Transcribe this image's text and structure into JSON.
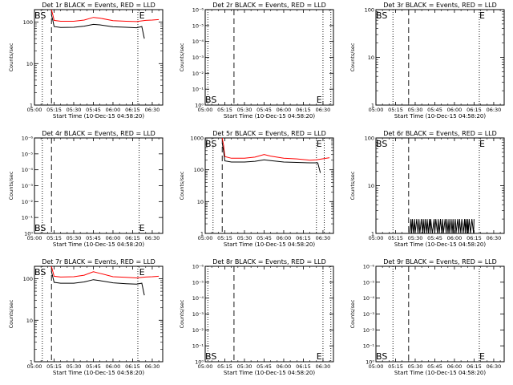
{
  "chart_data": [
    {
      "type": "line",
      "title": "Det 1r BLACK = Events, RED = LLD",
      "xlabel": "Start Time (10-Dec-15 04:58:20)",
      "ylabel": "Counts/sec",
      "x_tick_labels": [
        "05:00",
        "05:15",
        "05:30",
        "05:45",
        "06:00",
        "06:15",
        "06:30"
      ],
      "y_tick_labels": [
        "1",
        "10",
        "100"
      ],
      "ylim": [
        1,
        200
      ],
      "ylog": true,
      "ylog_labels": false,
      "markers": [
        {
          "label": "BS",
          "time": "05:00",
          "corner": "top"
        },
        {
          "label": "E",
          "time": "06:20",
          "corner": "top"
        }
      ],
      "vlines_dashed": [
        "05:00",
        "05:13"
      ],
      "vlines_dotted": [
        "05:06",
        "06:19"
      ],
      "series": [
        {
          "name": "LLD",
          "color": "#ff0000",
          "x": [
            "05:13",
            "05:14",
            "05:15",
            "05:20",
            "05:30",
            "05:38",
            "05:45",
            "05:50",
            "06:00",
            "06:10",
            "06:18",
            "06:25",
            "06:30",
            "06:35"
          ],
          "values": [
            200,
            150,
            110,
            105,
            105,
            112,
            130,
            125,
            108,
            105,
            103,
            110,
            112,
            115
          ]
        },
        {
          "name": "Events",
          "color": "#000000",
          "x": [
            "05:13",
            "05:14",
            "05:15",
            "05:20",
            "05:30",
            "05:38",
            "05:45",
            "05:50",
            "06:00",
            "06:10",
            "06:18",
            "06:22",
            "06:24"
          ],
          "values": [
            150,
            110,
            78,
            74,
            75,
            80,
            88,
            86,
            77,
            75,
            73,
            78,
            40
          ]
        }
      ]
    },
    {
      "type": "line",
      "title": "Det 2r BLACK = Events, RED = LLD",
      "xlabel": "Start Time (10-Dec-15 04:58:20)",
      "ylabel": "Counts/sec",
      "x_tick_labels": [
        "05:00",
        "05:15",
        "05:30",
        "05:45",
        "06:00",
        "06:15",
        "06:30"
      ],
      "y_tick_labels": [
        "10⁰",
        "10⁻¹",
        "10⁻²",
        "10⁻³",
        "10⁻⁴",
        "10⁻⁵",
        "10⁻⁶"
      ],
      "ylim": [
        1e-06,
        1
      ],
      "ylog": true,
      "ylog_labels": true,
      "markers": [
        {
          "label": "BS",
          "time": "05:00",
          "corner": "bottom"
        },
        {
          "label": "E",
          "time": "06:25",
          "corner": "bottom"
        }
      ],
      "vlines_dashed": [
        "05:22"
      ],
      "vlines_dotted": [
        "05:02",
        "06:30",
        "06:36"
      ],
      "series": []
    },
    {
      "type": "line",
      "title": "Det 3r BLACK = Events, RED = LLD",
      "xlabel": "Start Time (10-Dec-15 04:58:20)",
      "ylabel": "Counts/sec",
      "x_tick_labels": [
        "05:00",
        "05:15",
        "05:30",
        "05:45",
        "06:00",
        "06:15",
        "06:30"
      ],
      "y_tick_labels": [
        "1",
        "10",
        "100"
      ],
      "ylim": [
        1,
        100
      ],
      "ylog": true,
      "ylog_labels": false,
      "markers": [
        {
          "label": "BS",
          "time": "05:00",
          "corner": "top"
        },
        {
          "label": "E",
          "time": "06:19",
          "corner": "top"
        }
      ],
      "vlines_dashed": [
        "05:25"
      ],
      "vlines_dotted": [
        "05:00",
        "05:13",
        "06:19"
      ],
      "series": []
    },
    {
      "type": "line",
      "title": "Det 4r BLACK = Events, RED = LLD",
      "xlabel": "Start Time (10-Dec-15 04:58:20)",
      "ylabel": "Counts/sec",
      "x_tick_labels": [
        "05:00",
        "05:15",
        "05:30",
        "05:45",
        "06:00",
        "06:15",
        "06:30"
      ],
      "y_tick_labels": [
        "10⁰",
        "10⁻¹",
        "10⁻²",
        "10⁻³",
        "10⁻⁴",
        "10⁻⁵",
        "10⁻⁶"
      ],
      "ylim": [
        1e-06,
        1
      ],
      "ylog": true,
      "ylog_labels": true,
      "markers": [
        {
          "label": "BS",
          "time": "05:00",
          "corner": "bottom"
        },
        {
          "label": "E",
          "time": "06:20",
          "corner": "bottom"
        }
      ],
      "vlines_dashed": [
        "05:13"
      ],
      "vlines_dotted": [
        "05:00",
        "05:06",
        "06:20"
      ],
      "series": []
    },
    {
      "type": "line",
      "title": "Det 5r BLACK = Events, RED = LLD",
      "xlabel": "Start Time (10-Dec-15 04:58:20)",
      "ylabel": "Counts/sec",
      "x_tick_labels": [
        "05:00",
        "05:15",
        "05:30",
        "05:45",
        "06:00",
        "06:15",
        "06:30"
      ],
      "y_tick_labels": [
        "1",
        "10",
        "100",
        "1000"
      ],
      "ylim": [
        1,
        1000
      ],
      "ylog": true,
      "ylog_labels": false,
      "markers": [
        {
          "label": "BS",
          "time": "05:00",
          "corner": "top"
        },
        {
          "label": "E",
          "time": "06:25",
          "corner": "top"
        }
      ],
      "vlines_dashed": [
        "05:00",
        "05:13"
      ],
      "vlines_dotted": [
        "05:06",
        "06:25",
        "06:31"
      ],
      "series": [
        {
          "name": "LLD",
          "color": "#ff0000",
          "x": [
            "05:13",
            "05:14",
            "05:15",
            "05:20",
            "05:30",
            "05:38",
            "05:45",
            "05:50",
            "06:00",
            "06:10",
            "06:20",
            "06:25",
            "06:35"
          ],
          "values": [
            1000,
            600,
            260,
            230,
            230,
            250,
            300,
            270,
            230,
            220,
            200,
            205,
            240
          ]
        },
        {
          "name": "Events",
          "color": "#000000",
          "x": [
            "05:13",
            "05:14",
            "05:15",
            "05:20",
            "05:30",
            "05:38",
            "05:45",
            "05:50",
            "06:00",
            "06:10",
            "06:20",
            "06:26",
            "06:28"
          ],
          "values": [
            700,
            400,
            190,
            175,
            175,
            185,
            205,
            195,
            175,
            170,
            165,
            165,
            80
          ]
        }
      ]
    },
    {
      "type": "line",
      "title": "Det 6r BLACK = Events, RED = LLD",
      "xlabel": "Start Time (10-Dec-15 04:58:20)",
      "ylabel": "Counts/sec",
      "x_tick_labels": [
        "05:00",
        "05:15",
        "05:30",
        "05:45",
        "06:00",
        "06:15",
        "06:30"
      ],
      "y_tick_labels": [
        "1",
        "10",
        "100"
      ],
      "ylim": [
        1,
        100
      ],
      "ylog": true,
      "ylog_labels": false,
      "markers": [
        {
          "label": "BS",
          "time": "05:00",
          "corner": "top"
        },
        {
          "label": "E",
          "time": "06:19",
          "corner": "top"
        }
      ],
      "vlines_dashed": [
        "05:25"
      ],
      "vlines_dotted": [
        "05:00",
        "05:13",
        "06:19"
      ],
      "series": [
        {
          "name": "Events",
          "color": "#000000",
          "noisy": true,
          "x_start": "05:25",
          "x_end": "06:15",
          "low": 1,
          "high": 2
        }
      ]
    },
    {
      "type": "line",
      "title": "Det 7r BLACK = Events, RED = LLD",
      "xlabel": "Start Time (10-Dec-15 04:58:20)",
      "ylabel": "Counts/sec",
      "x_tick_labels": [
        "05:00",
        "05:15",
        "05:30",
        "05:45",
        "06:00",
        "06:15",
        "06:30"
      ],
      "y_tick_labels": [
        "1",
        "10",
        "100"
      ],
      "ylim": [
        1,
        200
      ],
      "ylog": true,
      "ylog_labels": false,
      "markers": [
        {
          "label": "BS",
          "time": "05:00",
          "corner": "top"
        },
        {
          "label": "E",
          "time": "06:20",
          "corner": "top"
        }
      ],
      "vlines_dashed": [
        "05:00",
        "05:13"
      ],
      "vlines_dotted": [
        "05:06",
        "06:19"
      ],
      "series": [
        {
          "name": "LLD",
          "color": "#ff0000",
          "x": [
            "05:13",
            "05:14",
            "05:15",
            "05:20",
            "05:30",
            "05:38",
            "05:45",
            "05:50",
            "06:00",
            "06:10",
            "06:18",
            "06:25",
            "06:30",
            "06:35"
          ],
          "values": [
            200,
            150,
            115,
            110,
            112,
            122,
            148,
            135,
            112,
            108,
            105,
            110,
            112,
            115
          ]
        },
        {
          "name": "Events",
          "color": "#000000",
          "x": [
            "05:13",
            "05:14",
            "05:15",
            "05:20",
            "05:30",
            "05:38",
            "05:45",
            "05:50",
            "06:00",
            "06:10",
            "06:18",
            "06:22",
            "06:24"
          ],
          "values": [
            150,
            110,
            82,
            78,
            78,
            84,
            95,
            90,
            80,
            76,
            74,
            78,
            40
          ]
        }
      ]
    },
    {
      "type": "line",
      "title": "Det 8r BLACK = Events, RED = LLD",
      "xlabel": "Start Time (10-Dec-15 04:58:20)",
      "ylabel": "Counts/sec",
      "x_tick_labels": [
        "05:00",
        "05:15",
        "05:30",
        "05:45",
        "06:00",
        "06:15",
        "06:30"
      ],
      "y_tick_labels": [
        "10⁰",
        "10⁻¹",
        "10⁻²",
        "10⁻³",
        "10⁻⁴",
        "10⁻⁵",
        "10⁻⁶"
      ],
      "ylim": [
        1e-06,
        1
      ],
      "ylog": true,
      "ylog_labels": true,
      "markers": [
        {
          "label": "BS",
          "time": "05:00",
          "corner": "bottom"
        },
        {
          "label": "E",
          "time": "06:25",
          "corner": "bottom"
        }
      ],
      "vlines_dashed": [
        "05:22"
      ],
      "vlines_dotted": [
        "05:02",
        "06:30",
        "06:36"
      ],
      "series": []
    },
    {
      "type": "line",
      "title": "Det 9r BLACK = Events, RED = LLD",
      "xlabel": "Start Time (10-Dec-15 04:58:20)",
      "ylabel": "Counts/sec",
      "x_tick_labels": [
        "05:00",
        "05:15",
        "05:30",
        "05:45",
        "06:00",
        "06:15",
        "06:30"
      ],
      "y_tick_labels": [
        "10⁰",
        "10⁻¹",
        "10⁻²",
        "10⁻³",
        "10⁻⁴",
        "10⁻⁵",
        "10⁻⁶"
      ],
      "ylim": [
        1e-06,
        1
      ],
      "ylog": true,
      "ylog_labels": true,
      "markers": [
        {
          "label": "BS",
          "time": "05:00",
          "corner": "bottom"
        },
        {
          "label": "E",
          "time": "06:19",
          "corner": "bottom"
        }
      ],
      "vlines_dashed": [
        "05:25"
      ],
      "vlines_dotted": [
        "05:00",
        "05:13",
        "06:19"
      ],
      "series": []
    }
  ]
}
